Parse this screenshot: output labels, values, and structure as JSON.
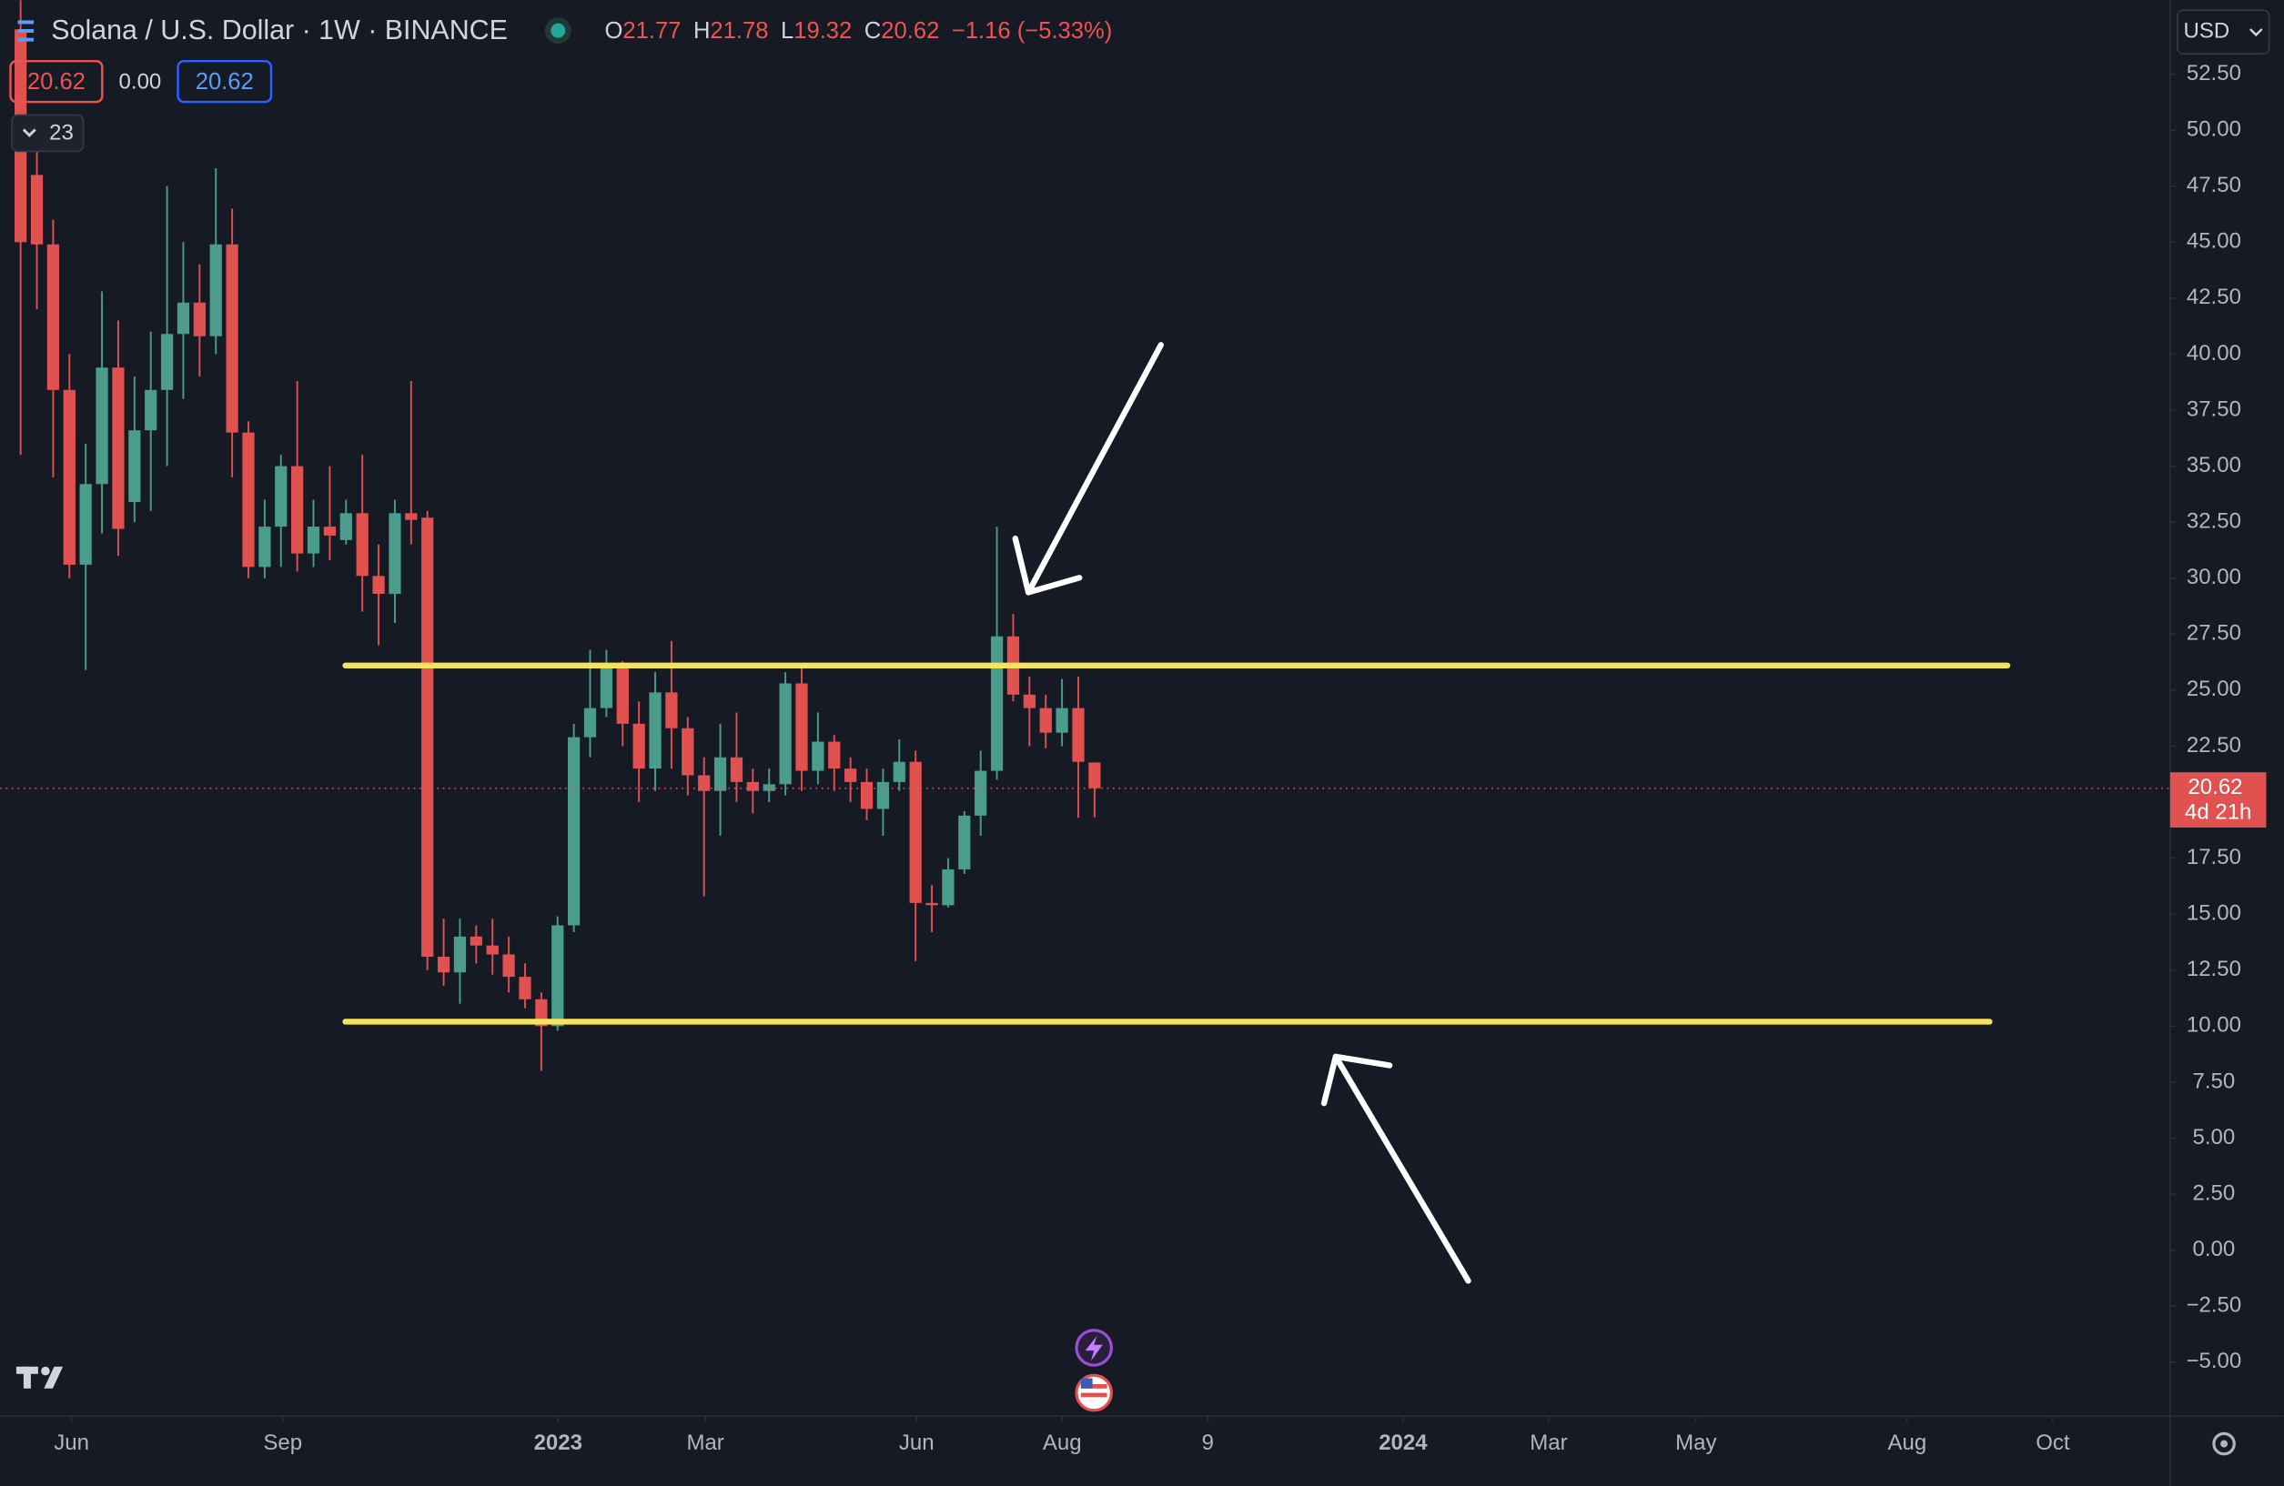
{
  "header": {
    "symbol": "Solana / U.S. Dollar · 1W · BINANCE",
    "ohlc": [
      {
        "label": "O",
        "value": "21.77"
      },
      {
        "label": "H",
        "value": "21.78"
      },
      {
        "label": "L",
        "value": "19.32"
      },
      {
        "label": "C",
        "value": "20.62"
      }
    ],
    "change": "−1.16 (−5.33%)"
  },
  "price_boxes": [
    "20.62",
    "0.00",
    "20.62"
  ],
  "indicator_count": "23",
  "currency": "USD",
  "price_label": {
    "price": "20.62",
    "countdown": "4d 21h"
  },
  "chart_data": {
    "type": "candlestick",
    "up_color": "#4a9c8c",
    "down_color": "#e0514f",
    "open": [
      54.5,
      48.0,
      44.9,
      38.4,
      30.6,
      34.2,
      39.4,
      33.4,
      36.6,
      38.4,
      40.9,
      42.3,
      40.8,
      44.9,
      36.5,
      30.5,
      32.3,
      35.0,
      31.1,
      32.3,
      31.7,
      32.9,
      30.1,
      29.3,
      32.9,
      32.7,
      13.1,
      12.4,
      14.0,
      13.6,
      13.2,
      12.2,
      11.2,
      10.0,
      14.5,
      22.9,
      24.2,
      26.1,
      23.5,
      21.5,
      24.9,
      23.3,
      21.2,
      20.5,
      22.0,
      20.9,
      20.5,
      20.8,
      25.3,
      21.4,
      22.7,
      21.5,
      20.9,
      19.7,
      20.9,
      21.8,
      15.5,
      15.4,
      17.0,
      19.4,
      21.4,
      27.4,
      24.8,
      24.2,
      23.1,
      24.2,
      21.77
    ],
    "high": [
      55.8,
      50.0,
      46.0,
      40.0,
      36.0,
      42.8,
      41.5,
      39.0,
      41.0,
      47.5,
      45.0,
      44.0,
      48.3,
      46.5,
      37.0,
      33.5,
      35.5,
      38.8,
      33.5,
      35.0,
      33.5,
      35.5,
      31.5,
      33.5,
      38.8,
      33.0,
      14.8,
      14.8,
      14.5,
      14.8,
      14.0,
      12.8,
      11.5,
      14.9,
      23.5,
      26.8,
      26.8,
      26.3,
      24.5,
      25.8,
      27.2,
      23.8,
      22.0,
      23.5,
      24.0,
      21.5,
      21.5,
      25.8,
      26.2,
      24.0,
      23.0,
      22.0,
      21.5,
      21.5,
      22.8,
      22.3,
      16.3,
      17.5,
      19.6,
      22.3,
      32.3,
      28.4,
      25.6,
      24.8,
      25.5,
      25.6,
      21.78
    ],
    "low": [
      35.5,
      42.0,
      34.5,
      30.0,
      25.9,
      32.0,
      31.0,
      32.5,
      33.0,
      35.0,
      38.0,
      39.0,
      40.0,
      34.5,
      30.0,
      30.0,
      30.5,
      30.3,
      30.5,
      30.8,
      31.5,
      28.5,
      27.0,
      28.0,
      31.5,
      12.5,
      11.8,
      11.0,
      12.8,
      12.3,
      11.5,
      10.8,
      8.0,
      9.8,
      14.2,
      22.0,
      23.8,
      22.5,
      20.0,
      20.5,
      21.5,
      20.3,
      15.8,
      18.5,
      20.0,
      19.5,
      20.0,
      20.3,
      20.5,
      20.8,
      20.5,
      20.0,
      19.2,
      18.5,
      20.5,
      12.9,
      14.2,
      15.3,
      16.8,
      18.5,
      21.0,
      24.5,
      22.5,
      22.4,
      22.5,
      19.3,
      19.32
    ],
    "close": [
      45.0,
      44.9,
      38.4,
      30.6,
      34.2,
      39.4,
      32.2,
      36.6,
      38.4,
      40.9,
      42.3,
      40.8,
      44.9,
      36.5,
      30.5,
      32.3,
      35.0,
      31.1,
      32.3,
      31.9,
      32.9,
      30.1,
      29.3,
      32.9,
      32.6,
      13.1,
      12.4,
      14.0,
      13.6,
      13.2,
      12.2,
      11.2,
      10.0,
      14.5,
      22.9,
      24.2,
      26.1,
      23.5,
      21.5,
      24.9,
      23.3,
      21.2,
      20.5,
      22.0,
      20.9,
      20.5,
      20.8,
      25.3,
      21.4,
      22.7,
      21.5,
      20.9,
      19.7,
      20.9,
      21.8,
      15.5,
      15.4,
      17.0,
      19.4,
      21.4,
      27.4,
      24.8,
      24.2,
      23.1,
      24.2,
      21.8,
      20.62
    ],
    "ylim": [
      -7.41,
      55.81
    ],
    "yticks": [
      {
        "value": 52.5,
        "label": "52.50"
      },
      {
        "value": 50,
        "label": "50.00"
      },
      {
        "value": 47.5,
        "label": "47.50"
      },
      {
        "value": 45,
        "label": "45.00"
      },
      {
        "value": 42.5,
        "label": "42.50"
      },
      {
        "value": 40,
        "label": "40.00"
      },
      {
        "value": 37.5,
        "label": "37.50"
      },
      {
        "value": 35,
        "label": "35.00"
      },
      {
        "value": 32.5,
        "label": "32.50"
      },
      {
        "value": 30,
        "label": "30.00"
      },
      {
        "value": 27.5,
        "label": "27.50"
      },
      {
        "value": 25,
        "label": "25.00"
      },
      {
        "value": 22.5,
        "label": "22.50"
      },
      {
        "value": 17.5,
        "label": "17.50"
      },
      {
        "value": 15,
        "label": "15.00"
      },
      {
        "value": 12.5,
        "label": "12.50"
      },
      {
        "value": 10,
        "label": "10.00"
      },
      {
        "value": 7.5,
        "label": "7.50"
      },
      {
        "value": 5,
        "label": "5.00"
      },
      {
        "value": 2.5,
        "label": "2.50"
      },
      {
        "value": 0,
        "label": "0.00"
      },
      {
        "value": -2.5,
        "label": "−2.50"
      },
      {
        "value": -5,
        "label": "−5.00"
      }
    ],
    "xlim": [
      -1.25,
      132.1
    ],
    "xticks": [
      {
        "value": 3.13,
        "label": "Jun"
      },
      {
        "value": 16.11,
        "label": "Sep"
      },
      {
        "value": 33.03,
        "label": "2023"
      },
      {
        "value": 42.08,
        "label": "Mar"
      },
      {
        "value": 55.06,
        "label": "Jun"
      },
      {
        "value": 64.01,
        "label": "Aug"
      },
      {
        "value": 72.96,
        "label": "9"
      },
      {
        "value": 84.96,
        "label": "2024"
      },
      {
        "value": 93.91,
        "label": "Mar"
      },
      {
        "value": 102.96,
        "label": "May"
      },
      {
        "value": 115.94,
        "label": "Aug"
      },
      {
        "value": 124.89,
        "label": "Oct"
      }
    ],
    "lines": [
      {
        "y": 26.1,
        "x": [
          19.96,
          122.1
        ],
        "color": "#f7e35a"
      },
      {
        "y": 10.2,
        "x": [
          19.96,
          121.0
        ],
        "color": "#f7e35a"
      }
    ]
  }
}
